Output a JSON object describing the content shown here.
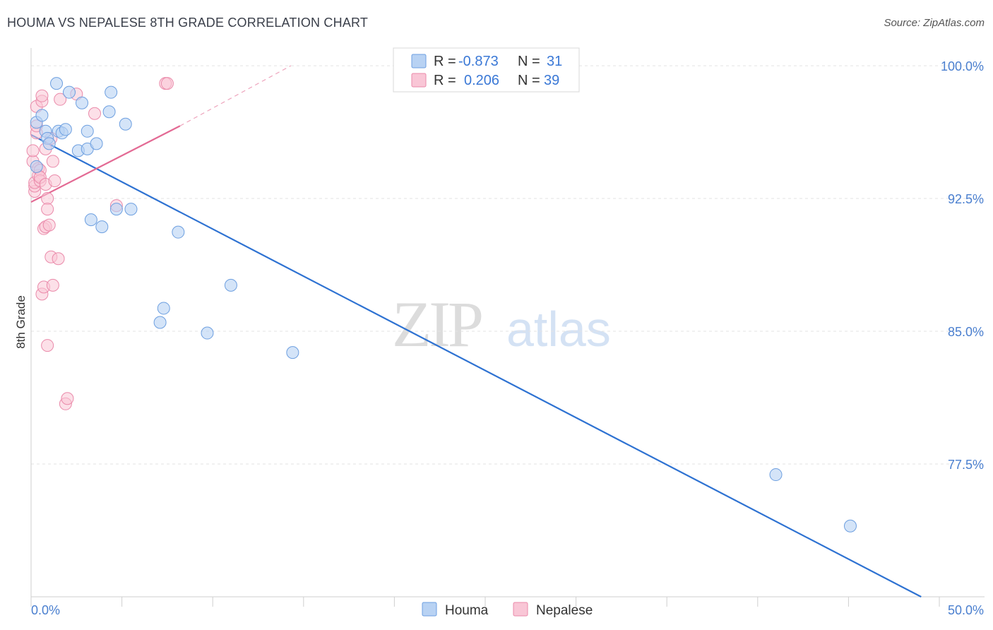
{
  "header": {
    "title": "HOUMA VS NEPALESE 8TH GRADE CORRELATION CHART",
    "source": "Source: ZipAtlas.com"
  },
  "watermark": {
    "zip": "ZIP",
    "atlas": "atlas"
  },
  "colors": {
    "houma_fill": "#b8d2f3",
    "houma_stroke": "#6d9fe0",
    "houma_line": "#2e72d2",
    "nepalese_fill": "#f9c6d6",
    "nepalese_stroke": "#ea8aaa",
    "nepalese_line": "#e36a94",
    "tick_label": "#4a7fcf"
  },
  "legend": {
    "rows": [
      {
        "r_label": "R =",
        "r_value": "-0.873",
        "n_label": "N =",
        "n_value": "31"
      },
      {
        "r_label": "R =",
        "r_value": "0.206",
        "n_label": "N =",
        "n_value": "39"
      }
    ]
  },
  "bottom_legend": {
    "houma": "Houma",
    "nepalese": "Nepalese"
  },
  "chart_data": {
    "type": "scatter",
    "title": "HOUMA VS NEPALESE 8TH GRADE CORRELATION CHART",
    "xlabel": "",
    "ylabel": "8th Grade",
    "xlim": [
      0,
      50
    ],
    "ylim": [
      70.0,
      101.0
    ],
    "x_tick_labels": [
      "0.0%",
      "50.0%"
    ],
    "y_ticks": [
      100.0,
      92.5,
      85.0,
      77.5
    ],
    "y_tick_labels": [
      "100.0%",
      "92.5%",
      "85.0%",
      "77.5%"
    ],
    "series": [
      {
        "name": "Houma",
        "r": -0.873,
        "n": 31,
        "trend": {
          "x0": 0.0,
          "y0": 96.1,
          "x1": 49.0,
          "y1": 70.0
        },
        "points": [
          [
            0.3,
            94.3
          ],
          [
            0.3,
            96.8
          ],
          [
            0.6,
            97.2
          ],
          [
            0.8,
            96.3
          ],
          [
            0.9,
            95.9
          ],
          [
            1.0,
            95.6
          ],
          [
            1.4,
            99.0
          ],
          [
            1.5,
            96.3
          ],
          [
            1.7,
            96.2
          ],
          [
            1.9,
            96.4
          ],
          [
            2.1,
            98.5
          ],
          [
            2.6,
            95.2
          ],
          [
            2.8,
            97.9
          ],
          [
            3.1,
            95.3
          ],
          [
            3.1,
            96.3
          ],
          [
            3.3,
            91.3
          ],
          [
            3.6,
            95.6
          ],
          [
            3.9,
            90.9
          ],
          [
            4.3,
            97.4
          ],
          [
            4.4,
            98.5
          ],
          [
            4.7,
            91.9
          ],
          [
            5.2,
            96.7
          ],
          [
            5.5,
            91.9
          ],
          [
            7.1,
            85.5
          ],
          [
            7.3,
            86.3
          ],
          [
            8.1,
            90.6
          ],
          [
            9.7,
            84.9
          ],
          [
            11.0,
            87.6
          ],
          [
            14.4,
            83.8
          ],
          [
            41.0,
            76.9
          ],
          [
            45.1,
            74.0
          ]
        ]
      },
      {
        "name": "Nepalese",
        "r": 0.206,
        "n": 39,
        "trend": {
          "x0": 0.0,
          "y0": 92.3,
          "x1": 8.2,
          "y1": 96.6
        },
        "trend_extension": {
          "x0": 8.2,
          "y0": 96.6,
          "x1": 14.3,
          "y1": 100.0
        },
        "points": [
          [
            0.1,
            94.6
          ],
          [
            0.1,
            95.2
          ],
          [
            0.2,
            92.9
          ],
          [
            0.2,
            93.2
          ],
          [
            0.2,
            93.4
          ],
          [
            0.3,
            96.2
          ],
          [
            0.3,
            96.6
          ],
          [
            0.3,
            97.7
          ],
          [
            0.4,
            94.2
          ],
          [
            0.4,
            93.8
          ],
          [
            0.5,
            94.1
          ],
          [
            0.5,
            93.5
          ],
          [
            0.5,
            93.7
          ],
          [
            0.6,
            98.0
          ],
          [
            0.6,
            98.3
          ],
          [
            0.6,
            87.1
          ],
          [
            0.7,
            87.5
          ],
          [
            0.7,
            90.8
          ],
          [
            0.8,
            93.3
          ],
          [
            0.8,
            95.3
          ],
          [
            0.8,
            90.9
          ],
          [
            0.9,
            92.5
          ],
          [
            0.9,
            91.9
          ],
          [
            0.9,
            84.2
          ],
          [
            1.0,
            91.0
          ],
          [
            1.1,
            89.2
          ],
          [
            1.1,
            95.9
          ],
          [
            1.2,
            94.6
          ],
          [
            1.2,
            87.6
          ],
          [
            1.3,
            93.5
          ],
          [
            1.5,
            89.1
          ],
          [
            1.6,
            98.1
          ],
          [
            1.9,
            80.9
          ],
          [
            2.0,
            81.2
          ],
          [
            2.5,
            98.4
          ],
          [
            3.5,
            97.3
          ],
          [
            4.7,
            92.1
          ],
          [
            7.4,
            99.0
          ],
          [
            7.5,
            99.0
          ]
        ]
      }
    ]
  }
}
